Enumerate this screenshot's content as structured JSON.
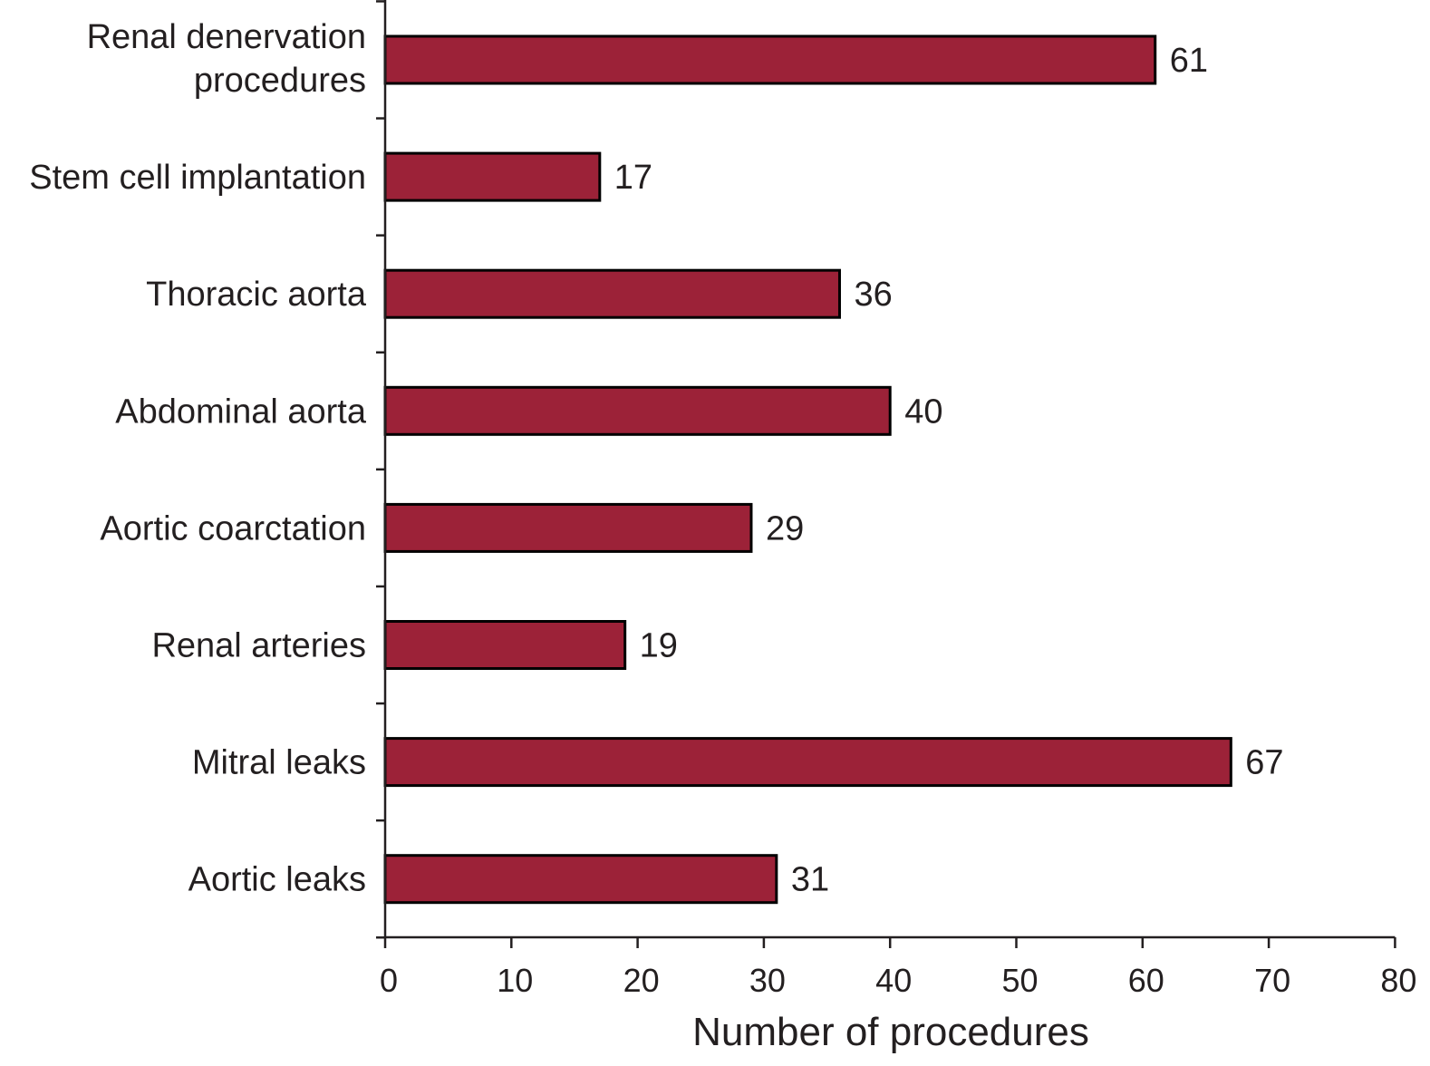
{
  "chart_data": {
    "type": "bar",
    "orientation": "horizontal",
    "categories": [
      [
        "Renal denervation",
        "procedures"
      ],
      [
        "Stem cell implantation"
      ],
      [
        "Thoracic aorta"
      ],
      [
        "Abdominal aorta"
      ],
      [
        "Aortic coarctation"
      ],
      [
        "Renal arteries"
      ],
      [
        "Mitral leaks"
      ],
      [
        "Aortic leaks"
      ]
    ],
    "values": [
      61,
      17,
      36,
      40,
      29,
      19,
      67,
      31
    ],
    "data_labels": [
      "61",
      "17",
      "36",
      "40",
      "29",
      "19",
      "67",
      "31"
    ],
    "title": "",
    "xlabel": "Number of procedures",
    "ylabel": "",
    "xlim": [
      0,
      80
    ],
    "x_ticks": [
      0,
      10,
      20,
      30,
      40,
      50,
      60,
      70,
      80
    ],
    "grid": false,
    "legend": "none",
    "bar_color": "#9c2238",
    "bar_stroke": "#000000"
  }
}
